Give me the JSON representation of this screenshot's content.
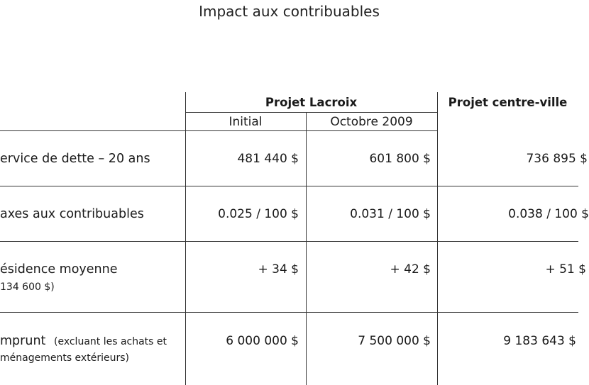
{
  "title": "Impact aux contribuables",
  "headers": {
    "group_lacroix": "Projet Lacroix",
    "group_centre": "Projet centre-ville",
    "sub_initial": "Initial",
    "sub_octobre": "Octobre 2009"
  },
  "rows": [
    {
      "label": "ervice de dette – 20 ans",
      "note": "",
      "initial": "481 440 $",
      "octobre": "601 800 $",
      "centre": "736 895 $"
    },
    {
      "label": "axes aux contribuables",
      "note": "",
      "initial": "0.025 / 100 $",
      "octobre": "0.031 / 100 $",
      "centre": "0.038 / 100 $"
    },
    {
      "label": "ésidence moyenne",
      "note": "134 600 $)",
      "initial": "+ 34 $",
      "octobre": "+ 42 $",
      "centre": "+ 51 $"
    },
    {
      "label": "mprunt",
      "label_extra": "(excluant les achats et",
      "note": "ménagements extérieurs)",
      "initial": "6 000 000 $",
      "octobre": "7 500 000 $",
      "centre": "9 183 643 $"
    }
  ]
}
